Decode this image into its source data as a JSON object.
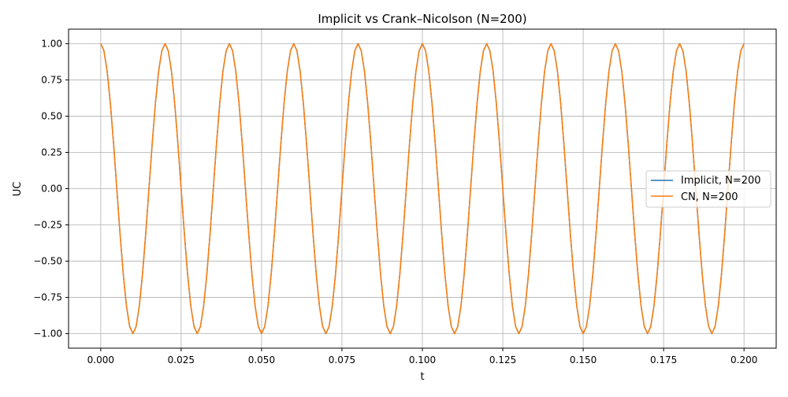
{
  "chart_data": {
    "type": "line",
    "title": "Implicit vs Crank–Nicolson (N=200)",
    "xlabel": "t",
    "ylabel": "UC",
    "xlim": [
      -0.01,
      0.21
    ],
    "ylim": [
      -1.1,
      1.1
    ],
    "grid": true,
    "legend_placement": "center-right",
    "x_ticks": [
      "0.000",
      "0.025",
      "0.050",
      "0.075",
      "0.100",
      "0.125",
      "0.150",
      "0.175",
      "0.200"
    ],
    "x_tick_values": [
      0,
      0.025,
      0.05,
      0.075,
      0.1,
      0.125,
      0.15,
      0.175,
      0.2
    ],
    "y_ticks": [
      "1.00",
      "0.75",
      "0.50",
      "0.25",
      "0.00",
      "−0.25",
      "−0.50",
      "−0.75",
      "−1.00"
    ],
    "y_tick_values": [
      1,
      0.75,
      0.5,
      0.25,
      0,
      -0.25,
      -0.5,
      -0.75,
      -1
    ],
    "x": {
      "start": 0,
      "step": 0.001,
      "count": 201
    },
    "series": [
      {
        "name": "Implicit, N=200",
        "color": "#1f77b4",
        "values": [
          1,
          0.951,
          0.809,
          0.588,
          0.309,
          0,
          -0.309,
          -0.588,
          -0.809,
          -0.951,
          -1,
          -0.951,
          -0.809,
          -0.588,
          -0.309,
          0,
          0.309,
          0.588,
          0.809,
          0.951,
          1,
          0.951,
          0.809,
          0.588,
          0.309,
          0,
          -0.309,
          -0.588,
          -0.809,
          -0.951,
          -1,
          -0.951,
          -0.809,
          -0.588,
          -0.309,
          0,
          0.309,
          0.588,
          0.809,
          0.951,
          1,
          0.951,
          0.809,
          0.588,
          0.309,
          0,
          -0.309,
          -0.588,
          -0.809,
          -0.951,
          -1,
          -0.951,
          -0.809,
          -0.588,
          -0.309,
          0,
          0.309,
          0.588,
          0.809,
          0.951,
          1,
          0.951,
          0.809,
          0.588,
          0.309,
          0,
          -0.309,
          -0.588,
          -0.809,
          -0.951,
          -1,
          -0.951,
          -0.809,
          -0.588,
          -0.309,
          0,
          0.309,
          0.588,
          0.809,
          0.951,
          1,
          0.951,
          0.809,
          0.588,
          0.309,
          0,
          -0.309,
          -0.588,
          -0.809,
          -0.951,
          -1,
          -0.951,
          -0.809,
          -0.588,
          -0.309,
          0,
          0.309,
          0.588,
          0.809,
          0.951,
          1,
          0.951,
          0.809,
          0.588,
          0.309,
          0,
          -0.309,
          -0.588,
          -0.809,
          -0.951,
          -1,
          -0.951,
          -0.809,
          -0.588,
          -0.309,
          0,
          0.309,
          0.588,
          0.809,
          0.951,
          1,
          0.951,
          0.809,
          0.588,
          0.309,
          0,
          -0.309,
          -0.588,
          -0.809,
          -0.951,
          -1,
          -0.951,
          -0.809,
          -0.588,
          -0.309,
          0,
          0.309,
          0.588,
          0.809,
          0.951,
          1,
          0.951,
          0.809,
          0.588,
          0.309,
          0,
          -0.309,
          -0.588,
          -0.809,
          -0.951,
          -1,
          -0.951,
          -0.809,
          -0.588,
          -0.309,
          0,
          0.309,
          0.588,
          0.809,
          0.951,
          1,
          0.951,
          0.809,
          0.588,
          0.309,
          0,
          -0.309,
          -0.588,
          -0.809,
          -0.951,
          -1,
          -0.951,
          -0.809,
          -0.588,
          -0.309,
          0,
          0.309,
          0.588,
          0.809,
          0.951,
          1,
          0.951,
          0.809,
          0.588,
          0.309,
          0,
          -0.309,
          -0.588,
          -0.809,
          -0.951,
          -1,
          -0.951,
          -0.809,
          -0.588,
          -0.309,
          0,
          0.309,
          0.588,
          0.809,
          0.951,
          1
        ]
      },
      {
        "name": "CN, N=200",
        "color": "#ff7f0e",
        "values": [
          1,
          0.951,
          0.809,
          0.588,
          0.309,
          0,
          -0.309,
          -0.588,
          -0.809,
          -0.951,
          -1,
          -0.951,
          -0.809,
          -0.588,
          -0.309,
          0,
          0.309,
          0.588,
          0.809,
          0.951,
          1,
          0.951,
          0.809,
          0.588,
          0.309,
          0,
          -0.309,
          -0.588,
          -0.809,
          -0.951,
          -1,
          -0.951,
          -0.809,
          -0.588,
          -0.309,
          0,
          0.309,
          0.588,
          0.809,
          0.951,
          1,
          0.951,
          0.809,
          0.588,
          0.309,
          0,
          -0.309,
          -0.588,
          -0.809,
          -0.951,
          -1,
          -0.951,
          -0.809,
          -0.588,
          -0.309,
          0,
          0.309,
          0.588,
          0.809,
          0.951,
          1,
          0.951,
          0.809,
          0.588,
          0.309,
          0,
          -0.309,
          -0.588,
          -0.809,
          -0.951,
          -1,
          -0.951,
          -0.809,
          -0.588,
          -0.309,
          0,
          0.309,
          0.588,
          0.809,
          0.951,
          1,
          0.951,
          0.809,
          0.588,
          0.309,
          0,
          -0.309,
          -0.588,
          -0.809,
          -0.951,
          -1,
          -0.951,
          -0.809,
          -0.588,
          -0.309,
          0,
          0.309,
          0.588,
          0.809,
          0.951,
          1,
          0.951,
          0.809,
          0.588,
          0.309,
          0,
          -0.309,
          -0.588,
          -0.809,
          -0.951,
          -1,
          -0.951,
          -0.809,
          -0.588,
          -0.309,
          0,
          0.309,
          0.588,
          0.809,
          0.951,
          1,
          0.951,
          0.809,
          0.588,
          0.309,
          0,
          -0.309,
          -0.588,
          -0.809,
          -0.951,
          -1,
          -0.951,
          -0.809,
          -0.588,
          -0.309,
          0,
          0.309,
          0.588,
          0.809,
          0.951,
          1,
          0.951,
          0.809,
          0.588,
          0.309,
          0,
          -0.309,
          -0.588,
          -0.809,
          -0.951,
          -1,
          -0.951,
          -0.809,
          -0.588,
          -0.309,
          0,
          0.309,
          0.588,
          0.809,
          0.951,
          1,
          0.951,
          0.809,
          0.588,
          0.309,
          0,
          -0.309,
          -0.588,
          -0.809,
          -0.951,
          -1,
          -0.951,
          -0.809,
          -0.588,
          -0.309,
          0,
          0.309,
          0.588,
          0.809,
          0.951,
          1,
          0.951,
          0.809,
          0.588,
          0.309,
          0,
          -0.309,
          -0.588,
          -0.809,
          -0.951,
          -1,
          -0.951,
          -0.809,
          -0.588,
          -0.309,
          0,
          0.309,
          0.588,
          0.809,
          0.951,
          1
        ]
      }
    ]
  }
}
